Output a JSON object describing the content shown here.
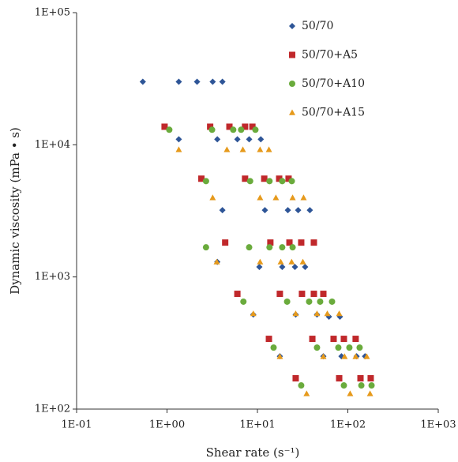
{
  "chart_data": {
    "type": "scatter",
    "x_label": "Shear rate (s⁻¹)",
    "y_label": "Dynamic viscosity (mPa • s)",
    "x_log": true,
    "y_log": true,
    "xlim": [
      0.1,
      1000
    ],
    "ylim": [
      100,
      100000
    ],
    "xticks": [
      {
        "value": 0.1,
        "label": "1E-01"
      },
      {
        "value": 1,
        "label": "1E+00"
      },
      {
        "value": 10,
        "label": "1E+01"
      },
      {
        "value": 100,
        "label": "1E+02"
      },
      {
        "value": 1000,
        "label": "1E+03"
      }
    ],
    "yticks": [
      {
        "value": 100,
        "label": "1E+02"
      },
      {
        "value": 1000,
        "label": "1E+03"
      },
      {
        "value": 10000,
        "label": "1E+04"
      },
      {
        "value": 100000,
        "label": "1E+05"
      }
    ],
    "legend": "upper right",
    "series": [
      {
        "name": "50/70",
        "color": "#2e5597",
        "marker": "diamond",
        "x": [
          0.54,
          1.35,
          2.15,
          3.2,
          4.1,
          1.35,
          3.6,
          6.0,
          8.1,
          10.9,
          4.1,
          12.1,
          21.7,
          28.2,
          38,
          3.6,
          10.5,
          18.8,
          26,
          33.7,
          9.0,
          26.5,
          45.6,
          61.8,
          81.8,
          17.7,
          53.6,
          85,
          125,
          155
        ],
        "y": [
          30000,
          30000,
          30000,
          30000,
          30000,
          11000,
          11000,
          11000,
          11000,
          11000,
          3200,
          3200,
          3200,
          3200,
          3200,
          1300,
          1190,
          1190,
          1190,
          1190,
          520,
          520,
          520,
          500,
          500,
          251,
          251,
          251,
          251,
          251
        ]
      },
      {
        "name": "50/70+A5",
        "color": "#c0282b",
        "marker": "square",
        "x": [
          0.94,
          3.0,
          4.9,
          7.3,
          8.8,
          2.4,
          7.3,
          11.9,
          17.4,
          22.1,
          4.4,
          13.9,
          22.6,
          30.5,
          42.1,
          6.0,
          17.7,
          31.1,
          42.1,
          53.6,
          13.4,
          40.5,
          69.6,
          90.4,
          122,
          26.5,
          80.2,
          138,
          179
        ],
        "y": [
          13700,
          13700,
          13700,
          13700,
          13700,
          5540,
          5540,
          5540,
          5540,
          5540,
          1820,
          1820,
          1820,
          1820,
          1820,
          745,
          745,
          745,
          745,
          745,
          340,
          340,
          340,
          340,
          340,
          171,
          171,
          171,
          171
        ]
      },
      {
        "name": "50/70+A10",
        "color": "#6aab3c",
        "marker": "circle",
        "x": [
          1.06,
          3.15,
          5.4,
          6.6,
          9.5,
          2.7,
          8.3,
          13.6,
          18.8,
          24,
          2.7,
          8.1,
          13.6,
          18.8,
          24.5,
          7.0,
          21.3,
          37.3,
          49.4,
          66.9,
          15.1,
          45.6,
          78.5,
          104,
          135,
          30.5,
          90.4,
          141,
          183
        ],
        "y": [
          13000,
          13000,
          13000,
          13000,
          13000,
          5310,
          5310,
          5310,
          5310,
          5310,
          1675,
          1675,
          1675,
          1675,
          1675,
          650,
          650,
          650,
          650,
          650,
          292,
          292,
          292,
          292,
          292,
          151,
          151,
          151,
          151
        ]
      },
      {
        "name": "50/70+A15",
        "color": "#e69a1c",
        "marker": "triangle",
        "x": [
          1.35,
          4.6,
          6.9,
          10.7,
          13.4,
          3.2,
          10.7,
          16.0,
          24.5,
          32.4,
          3.55,
          10.7,
          18.1,
          23.9,
          31.8,
          9.0,
          26.5,
          45.6,
          59.3,
          80.2,
          17.7,
          53.6,
          92,
          122,
          162,
          35,
          106,
          176
        ],
        "y": [
          9200,
          9200,
          9200,
          9200,
          9200,
          3980,
          3980,
          3980,
          3980,
          3980,
          1300,
          1300,
          1300,
          1300,
          1300,
          528,
          528,
          528,
          528,
          528,
          250,
          250,
          250,
          250,
          250,
          131,
          131,
          131
        ]
      }
    ]
  }
}
